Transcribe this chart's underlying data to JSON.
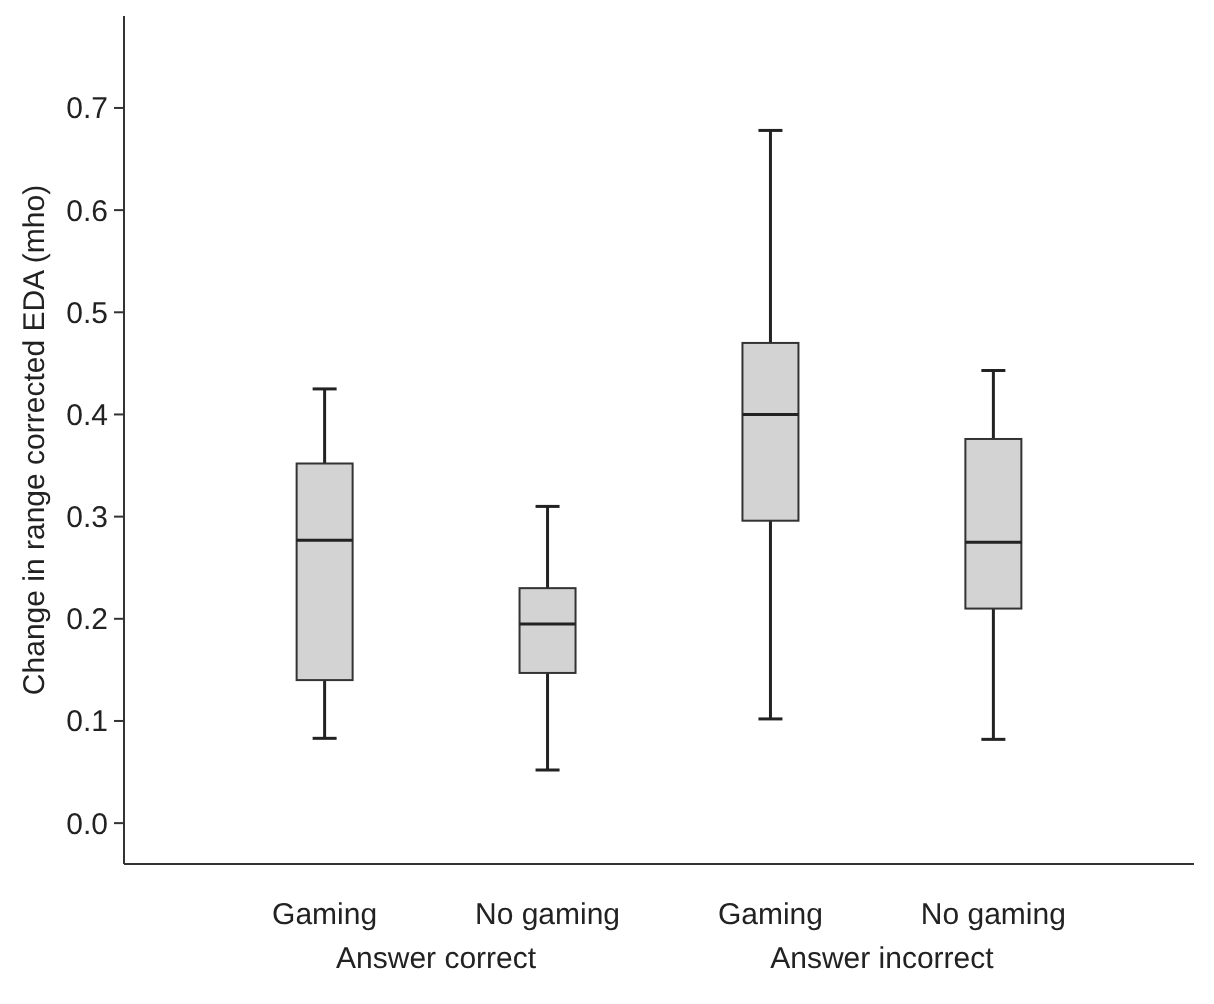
{
  "chart_data": {
    "type": "box",
    "ylabel": "Change in range corrected EDA (mho)",
    "categories": [
      "Gaming",
      "No gaming",
      "Gaming",
      "No gaming"
    ],
    "boxes": [
      {
        "low": 0.083,
        "q1": 0.14,
        "median": 0.277,
        "q3": 0.352,
        "high": 0.425
      },
      {
        "low": 0.052,
        "q1": 0.147,
        "median": 0.195,
        "q3": 0.23,
        "high": 0.31
      },
      {
        "low": 0.102,
        "q1": 0.296,
        "median": 0.4,
        "q3": 0.47,
        "high": 0.678
      },
      {
        "low": 0.082,
        "q1": 0.21,
        "median": 0.275,
        "q3": 0.376,
        "high": 0.443
      }
    ],
    "color": "#d3d3d3",
    "annotations": [
      "Answer correct",
      "Answer incorrect"
    ],
    "ylim": [
      -0.04,
      0.79
    ],
    "yticks": [
      {
        "value": 0,
        "label": "0.0"
      },
      {
        "value": 0.1,
        "label": "0.1"
      },
      {
        "value": 0.2,
        "label": "0.2"
      },
      {
        "value": 0.3,
        "label": "0.3"
      },
      {
        "value": 0.4,
        "label": "0.4"
      },
      {
        "value": 0.5,
        "label": "0.5"
      },
      {
        "value": 0.6,
        "label": "0.6"
      },
      {
        "value": 0.7,
        "label": "0.7"
      }
    ],
    "grid": false
  }
}
